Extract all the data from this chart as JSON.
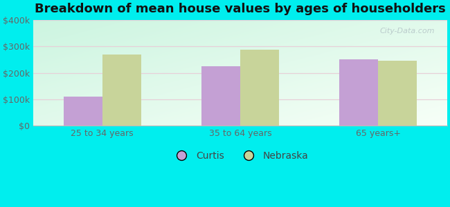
{
  "title": "Breakdown of mean house values by ages of householders",
  "categories": [
    "25 to 34 years",
    "35 to 64 years",
    "65 years+"
  ],
  "curtis_values": [
    110000,
    225000,
    250000
  ],
  "nebraska_values": [
    270000,
    287000,
    245000
  ],
  "curtis_color": "#c4a0d4",
  "nebraska_color": "#c8d49a",
  "ylim": [
    0,
    400000
  ],
  "yticks": [
    0,
    100000,
    200000,
    300000,
    400000
  ],
  "ytick_labels": [
    "$0",
    "$100k",
    "$200k",
    "$300k",
    "$400k"
  ],
  "background_color": "#00eeee",
  "bar_width": 0.28,
  "legend_labels": [
    "Curtis",
    "Nebraska"
  ],
  "title_fontsize": 13,
  "tick_fontsize": 9,
  "legend_fontsize": 10,
  "watermark": "City-Data.com"
}
